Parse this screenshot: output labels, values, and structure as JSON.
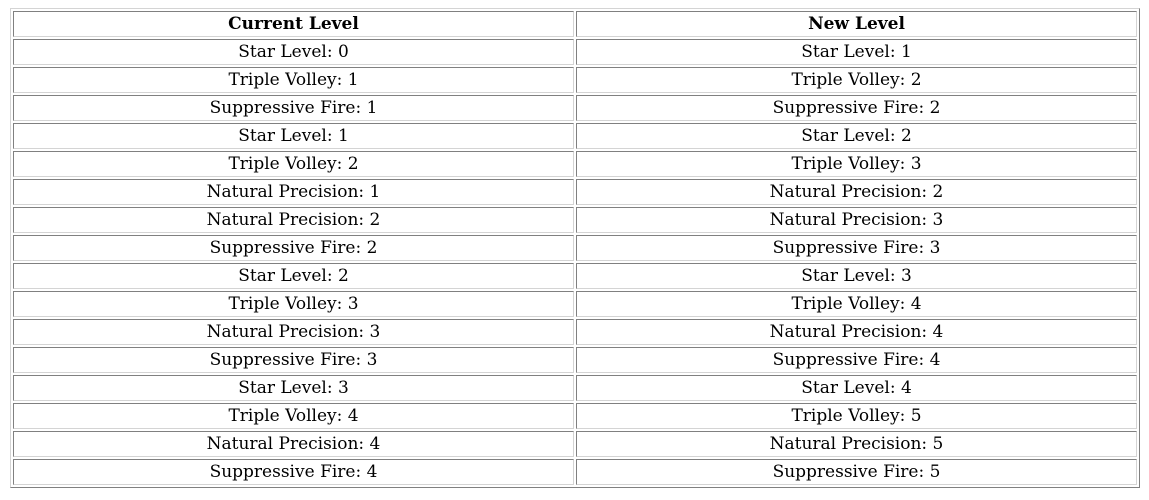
{
  "colors": {
    "background": "#ffffff",
    "text": "#000000",
    "border_dark": "#808080",
    "border_light": "#d4d4d4"
  },
  "table": {
    "headers": [
      "Current Level",
      "New Level"
    ],
    "rows": [
      [
        "Star Level: 0",
        "Star Level: 1"
      ],
      [
        "Triple Volley: 1",
        "Triple Volley: 2"
      ],
      [
        "Suppressive Fire: 1",
        "Suppressive Fire: 2"
      ],
      [
        "Star Level: 1",
        "Star Level: 2"
      ],
      [
        "Triple Volley: 2",
        "Triple Volley: 3"
      ],
      [
        "Natural Precision: 1",
        "Natural Precision: 2"
      ],
      [
        "Natural Precision: 2",
        "Natural Precision: 3"
      ],
      [
        "Suppressive Fire: 2",
        "Suppressive Fire: 3"
      ],
      [
        "Star Level: 2",
        "Star Level: 3"
      ],
      [
        "Triple Volley: 3",
        "Triple Volley: 4"
      ],
      [
        "Natural Precision: 3",
        "Natural Precision: 4"
      ],
      [
        "Suppressive Fire: 3",
        "Suppressive Fire: 4"
      ],
      [
        "Star Level: 3",
        "Star Level: 4"
      ],
      [
        "Triple Volley: 4",
        "Triple Volley: 5"
      ],
      [
        "Natural Precision: 4",
        "Natural Precision: 5"
      ],
      [
        "Suppressive Fire: 4",
        "Suppressive Fire: 5"
      ]
    ]
  }
}
